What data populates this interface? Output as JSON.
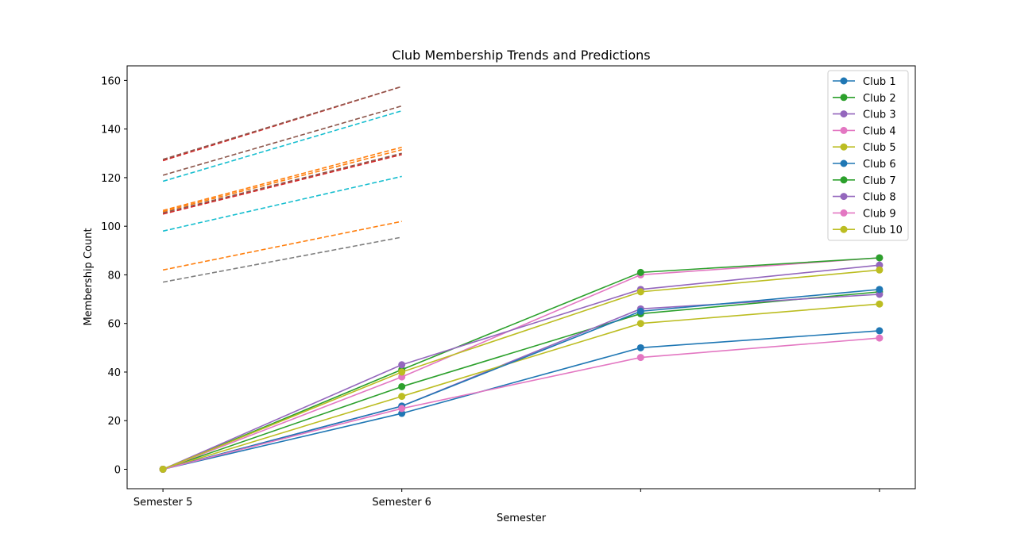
{
  "chart_data": {
    "type": "line",
    "title": "Club Membership Trends and Predictions",
    "xlabel": "Semester",
    "ylabel": "Membership Count",
    "x_tick_labels": [
      "Semester 5",
      "Semester 6",
      "",
      ""
    ],
    "x": [
      0,
      1,
      2,
      3
    ],
    "xlim": [
      -0.15,
      3.15
    ],
    "ylim": [
      -8,
      166
    ],
    "y_ticks": [
      0,
      20,
      40,
      60,
      80,
      100,
      120,
      140,
      160
    ],
    "grid": false,
    "legend_position": "top-right",
    "series": [
      {
        "name": "Club 1",
        "color": "#1f77b4",
        "values": [
          0,
          23,
          50,
          57
        ]
      },
      {
        "name": "Club 2",
        "color": "#2ca02c",
        "values": [
          0,
          34,
          64,
          73
        ]
      },
      {
        "name": "Club 3",
        "color": "#9467bd",
        "values": [
          0,
          26,
          66,
          72
        ]
      },
      {
        "name": "Club 4",
        "color": "#e377c2",
        "values": [
          0,
          38,
          80,
          87
        ]
      },
      {
        "name": "Club 5",
        "color": "#bcbd22",
        "values": [
          0,
          30,
          60,
          68
        ]
      },
      {
        "name": "Club 6",
        "color": "#1f77b4",
        "values": [
          0,
          26,
          65,
          74
        ]
      },
      {
        "name": "Club 7",
        "color": "#2ca02c",
        "values": [
          0,
          41,
          81,
          87
        ]
      },
      {
        "name": "Club 8",
        "color": "#9467bd",
        "values": [
          0,
          43,
          74,
          84
        ]
      },
      {
        "name": "Club 9",
        "color": "#e377c2",
        "values": [
          0,
          25,
          46,
          54
        ]
      },
      {
        "name": "Club 10",
        "color": "#bcbd22",
        "values": [
          0,
          40,
          73,
          82
        ]
      }
    ],
    "prediction_lines": [
      {
        "color": "#d62728",
        "values": [
          127,
          157.5
        ]
      },
      {
        "color": "#8c564b",
        "values": [
          127.5,
          157.5
        ]
      },
      {
        "color": "#8c564b",
        "values": [
          121,
          149.5
        ]
      },
      {
        "color": "#17becf",
        "values": [
          118.5,
          147.5
        ]
      },
      {
        "color": "#ff7f0e",
        "values": [
          106.5,
          132.5
        ]
      },
      {
        "color": "#ff7f0e",
        "values": [
          106,
          131.5
        ]
      },
      {
        "color": "#d62728",
        "values": [
          105,
          129.5
        ]
      },
      {
        "color": "#8c564b",
        "values": [
          105.5,
          130
        ]
      },
      {
        "color": "#17becf",
        "values": [
          98,
          120.5
        ]
      },
      {
        "color": "#ff7f0e",
        "values": [
          82,
          102
        ]
      },
      {
        "color": "#7f7f7f",
        "values": [
          77,
          95.5
        ]
      }
    ]
  }
}
